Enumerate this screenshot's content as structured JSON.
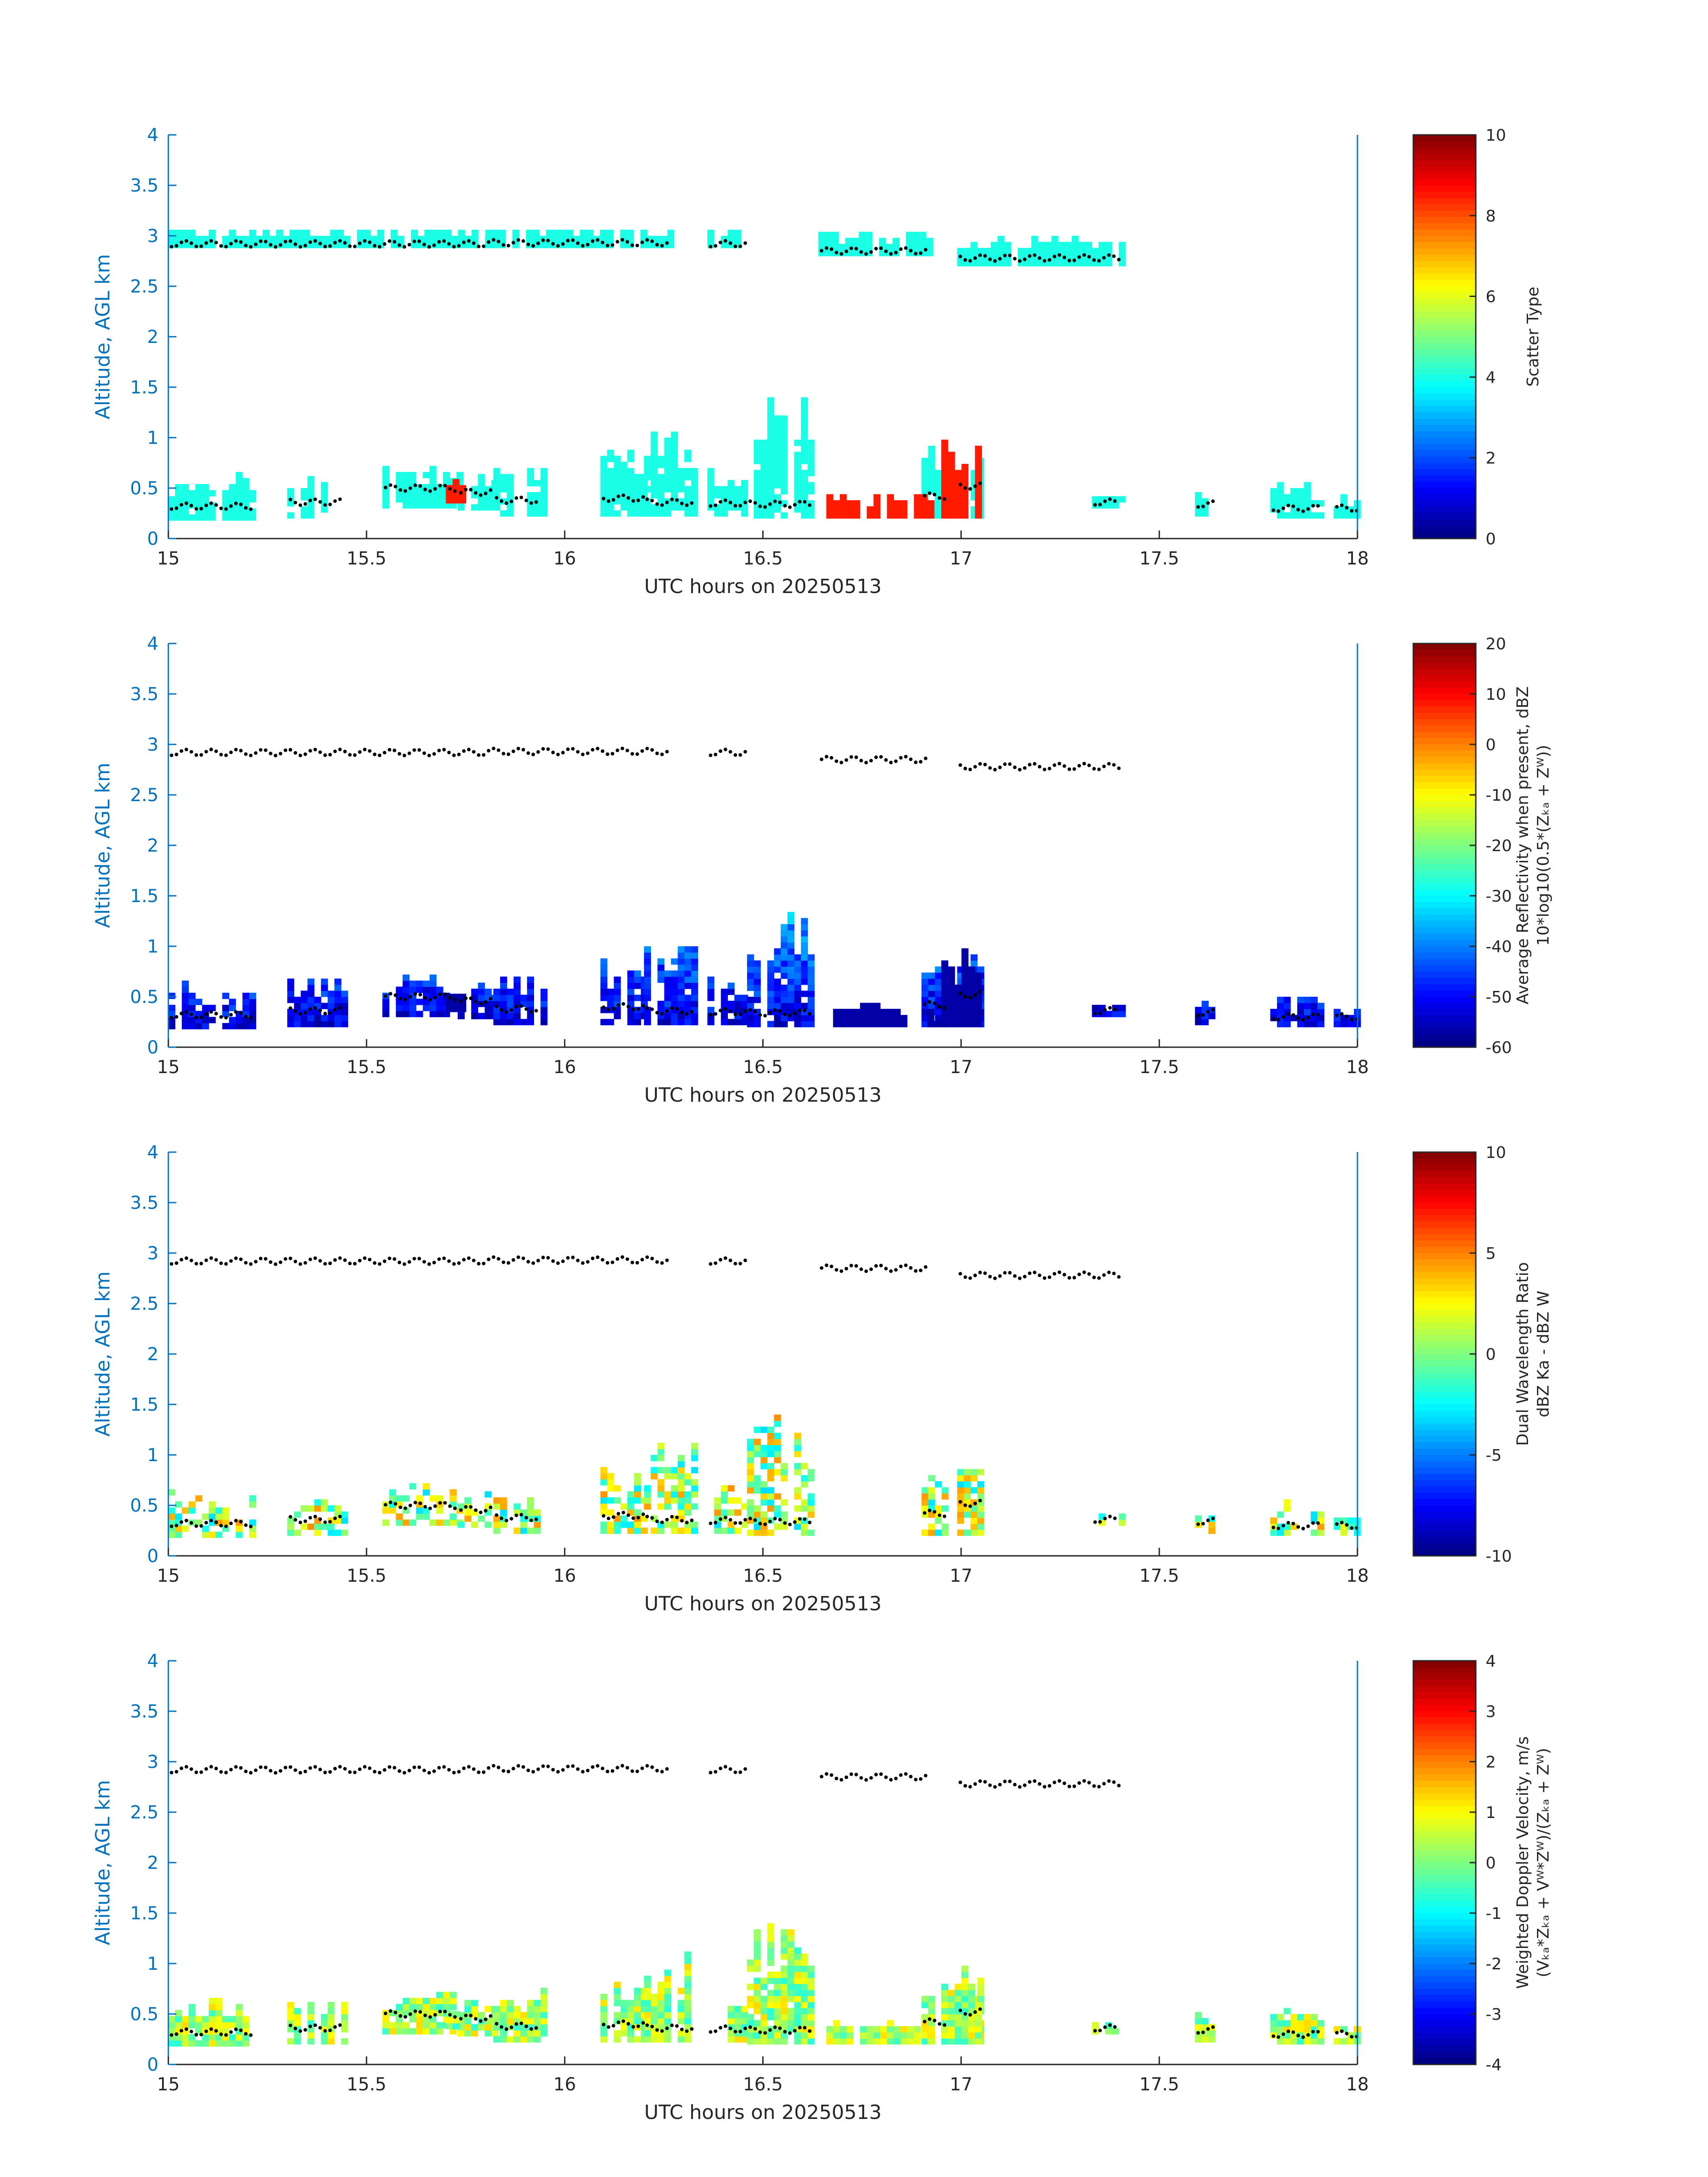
{
  "figure": {
    "xlabel": "UTC hours on 20250513",
    "ylabel": "Altitude, AGL km",
    "xlim": [
      15,
      18
    ],
    "ylim": [
      0,
      4
    ],
    "xticks": [
      "15",
      "15.5",
      "16",
      "16.5",
      "17",
      "17.5",
      "18"
    ],
    "yticks": [
      "0",
      "0.5",
      "1",
      "1.5",
      "2",
      "2.5",
      "3",
      "3.5",
      "4"
    ],
    "colormap": "jet",
    "axis_color": "#0072BD",
    "marker_color": "#000000"
  },
  "chart_data": [
    {
      "type": "heatmap",
      "name": "scatter-type",
      "cbar_label_lines": [
        "Scatter Type"
      ],
      "clim": [
        0,
        10
      ],
      "cbar_ticks": [
        "0",
        "2",
        "4",
        "6",
        "8",
        "10"
      ],
      "xlabel": "UTC hours on 20250513",
      "ylabel": "Altitude, AGL km",
      "dominant_values": {
        "cloud": 4,
        "precip": 8.5
      }
    },
    {
      "type": "heatmap",
      "name": "reflectivity",
      "cbar_label_lines": [
        "Average Reflectivity when present, dBZ",
        "10*log10(0.5*(Zₖₐ + Zᵂ))"
      ],
      "clim": [
        -60,
        20
      ],
      "cbar_ticks": [
        "-60",
        "-50",
        "-40",
        "-30",
        "-20",
        "-10",
        "0",
        "10",
        "20"
      ],
      "xlabel": "UTC hours on 20250513",
      "ylabel": "Altitude, AGL km"
    },
    {
      "type": "heatmap",
      "name": "dual-wavelength-ratio",
      "cbar_label_lines": [
        "Dual Wavelength Ratio",
        "dBZ Ka - dBZ W"
      ],
      "clim": [
        -10,
        10
      ],
      "cbar_ticks": [
        "-10",
        "-5",
        "0",
        "5",
        "10"
      ],
      "xlabel": "UTC hours on 20250513",
      "ylabel": "Altitude, AGL km"
    },
    {
      "type": "heatmap",
      "name": "doppler-velocity",
      "cbar_label_lines": [
        "Weighted Doppler Velocity, m/s",
        "(Vₖₐ*Zₖₐ + Vᵂ*Zᵂ)/(Zₖₐ + Zᵂ)"
      ],
      "clim": [
        -4,
        4
      ],
      "cbar_ticks": [
        "-4",
        "-3",
        "-2",
        "-1",
        "0",
        "1",
        "2",
        "3",
        "4"
      ],
      "xlabel": "UTC hours on 20250513",
      "ylabel": "Altitude, AGL km"
    }
  ],
  "cloud_segments": [
    {
      "x0": 15.0,
      "x1": 15.22,
      "ytop": 0.62,
      "ybot": 0.18,
      "base": 0.32
    },
    {
      "x0": 15.3,
      "x1": 15.44,
      "ytop": 0.65,
      "ybot": 0.2,
      "base": 0.36
    },
    {
      "x0": 15.54,
      "x1": 15.73,
      "ytop": 0.72,
      "ybot": 0.3,
      "base": 0.5
    },
    {
      "x0": 15.73,
      "x1": 15.82,
      "ytop": 0.64,
      "ybot": 0.28,
      "base": 0.46
    },
    {
      "x0": 15.82,
      "x1": 15.94,
      "ytop": 0.72,
      "ybot": 0.22,
      "base": 0.38
    },
    {
      "x0": 16.09,
      "x1": 16.2,
      "ytop": 0.9,
      "ybot": 0.22,
      "base": 0.4
    },
    {
      "x0": 16.2,
      "x1": 16.33,
      "ytop": 1.1,
      "ybot": 0.22,
      "base": 0.36
    },
    {
      "x0": 16.36,
      "x1": 16.46,
      "ytop": 0.7,
      "ybot": 0.22,
      "base": 0.35
    },
    {
      "x0": 16.46,
      "x1": 16.62,
      "ytop": 1.4,
      "ybot": 0.2,
      "base": 0.34
    },
    {
      "x0": 16.9,
      "x1": 16.96,
      "ytop": 0.92,
      "ybot": 0.2,
      "base": 0.42
    },
    {
      "x0": 16.99,
      "x1": 17.05,
      "ytop": 0.88,
      "ybot": 0.2,
      "base": 0.52
    },
    {
      "x0": 17.33,
      "x1": 17.4,
      "ytop": 0.42,
      "ybot": 0.3,
      "base": 0.36
    },
    {
      "x0": 17.59,
      "x1": 17.64,
      "ytop": 0.5,
      "ybot": 0.22,
      "base": 0.34
    },
    {
      "x0": 17.78,
      "x1": 17.91,
      "ytop": 0.52,
      "ybot": 0.2,
      "base": 0.3
    },
    {
      "x0": 17.94,
      "x1": 18.0,
      "ytop": 0.4,
      "ybot": 0.2,
      "base": 0.3
    }
  ],
  "upper_segments": [
    {
      "x0": 15.0,
      "x1": 15.8,
      "ytop": 3.05,
      "ybot": 2.88,
      "base": 2.92
    },
    {
      "x0": 15.8,
      "x1": 16.27,
      "ytop": 3.05,
      "ybot": 2.88,
      "base": 2.93
    },
    {
      "x0": 16.36,
      "x1": 16.46,
      "ytop": 3.05,
      "ybot": 2.88,
      "base": 2.92
    },
    {
      "x0": 16.64,
      "x1": 16.92,
      "ytop": 3.02,
      "ybot": 2.8,
      "base": 2.85
    },
    {
      "x0": 16.99,
      "x1": 17.4,
      "ytop": 2.98,
      "ybot": 2.7,
      "base": 2.78
    }
  ],
  "precip_segments": [
    {
      "x0": 16.66,
      "x1": 16.92,
      "ytop": 0.42,
      "ybot": 0.2
    },
    {
      "x0": 16.95,
      "x1": 17.05,
      "ytop": 0.98,
      "ybot": 0.2
    },
    {
      "x0": 15.7,
      "x1": 15.75,
      "ytop": 0.55,
      "ybot": 0.35
    }
  ]
}
